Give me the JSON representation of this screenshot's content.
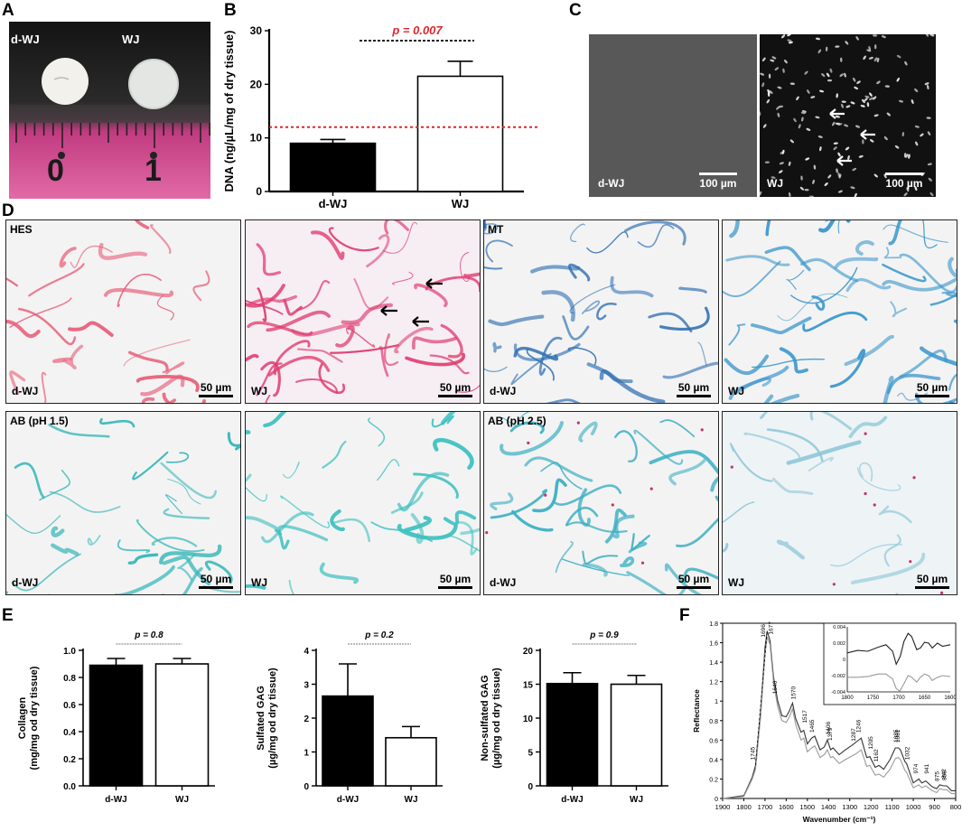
{
  "panels": {
    "A": {
      "letter": "A",
      "sample_labels": [
        "d-WJ",
        "WJ"
      ],
      "ruler_numbers": [
        "0",
        "1"
      ]
    },
    "B": {
      "letter": "B",
      "ylabel": "DNA (ng/µL/mg of dry tissue)",
      "p_text": "p = 0.007",
      "threshold_color": "#e0262b"
    },
    "C": {
      "letter": "C",
      "left_label": "d-WJ",
      "right_label": "WJ",
      "scalebar_text": "100 µm"
    },
    "D": {
      "letter": "D",
      "tiles": [
        {
          "stain_label": "HES",
          "sample_label": "d-WJ",
          "scalebar_text": "50 µm",
          "stain_color": "#e8607a"
        },
        {
          "stain_label": "",
          "sample_label": "WJ",
          "scalebar_text": "50 µm",
          "stain_color": "#e03c70"
        },
        {
          "stain_label": "MT",
          "sample_label": "d-WJ",
          "scalebar_text": "50 µm",
          "stain_color": "#2e6fb3"
        },
        {
          "stain_label": "",
          "sample_label": "WJ",
          "scalebar_text": "50 µm",
          "stain_color": "#3a96cc"
        },
        {
          "stain_label": "AB (pH 1.5)",
          "sample_label": "d-WJ",
          "scalebar_text": "50 µm",
          "stain_color": "#33b5b8"
        },
        {
          "stain_label": "",
          "sample_label": "WJ",
          "scalebar_text": "50 µm",
          "stain_color": "#3fc0c0"
        },
        {
          "stain_label": "AB (pH 2.5)",
          "sample_label": "d-WJ",
          "scalebar_text": "50 µm",
          "stain_color": "#3bafc2"
        },
        {
          "stain_label": "",
          "sample_label": "WJ",
          "scalebar_text": "50 µm",
          "stain_color": "#8fc8d8"
        }
      ]
    },
    "E": {
      "letter": "E"
    },
    "F": {
      "letter": "F",
      "peak_labels": [
        "1696",
        "1677",
        "1640",
        "1570",
        "1745",
        "1517",
        "1465",
        "1406",
        "1379",
        "1287",
        "1246",
        "1205",
        "1162",
        "1085",
        "1061",
        "1032",
        "974",
        "941",
        "875",
        "858",
        "842"
      ]
    }
  },
  "chart_data": [
    {
      "id": "B",
      "type": "bar",
      "categories": [
        "d-WJ",
        "WJ"
      ],
      "values": [
        9.0,
        21.5
      ],
      "errors": [
        0.7,
        2.8
      ],
      "bar_colors": [
        "#000000",
        "#ffffff"
      ],
      "ylabel": "DNA (ng/µL/mg of dry tissue)",
      "ylim": [
        0,
        30
      ],
      "yticks": [
        "0",
        "10",
        "20",
        "30"
      ],
      "threshold": 12,
      "annotation": "p = 0.007"
    },
    {
      "id": "E1",
      "type": "bar",
      "categories": [
        "d-WJ",
        "WJ"
      ],
      "values": [
        0.89,
        0.9
      ],
      "errors": [
        0.05,
        0.04
      ],
      "ylabel_lines": [
        "Collagen",
        "(mg/mg od dry tissue)"
      ],
      "ylim": [
        0,
        1.0
      ],
      "yticks": [
        "0.0",
        "0.2",
        "0.4",
        "0.6",
        "0.8",
        "1.0"
      ],
      "annotation": "p = 0.8"
    },
    {
      "id": "E2",
      "type": "bar",
      "categories": [
        "d-WJ",
        "WJ"
      ],
      "values": [
        2.65,
        1.42
      ],
      "errors": [
        0.95,
        0.33
      ],
      "ylabel_lines": [
        "Sulfated GAG",
        "(µg/mg od dry tissue)"
      ],
      "ylim": [
        0,
        4
      ],
      "yticks": [
        "0",
        "1",
        "2",
        "3",
        "4"
      ],
      "annotation": "p = 0.2"
    },
    {
      "id": "E3",
      "type": "bar",
      "categories": [
        "d-WJ",
        "WJ"
      ],
      "values": [
        15.1,
        15.0
      ],
      "errors": [
        1.6,
        1.3
      ],
      "ylabel_lines": [
        "Non-sulfated GAG",
        "(µg/mg od dry tissue)"
      ],
      "ylim": [
        0,
        20
      ],
      "yticks": [
        "0",
        "5",
        "10",
        "15",
        "20"
      ],
      "annotation": "p = 0.9"
    },
    {
      "id": "F",
      "type": "line",
      "xlabel": "Wavenumber (cm⁻¹)",
      "ylabel": "Reflectance",
      "xlim": [
        1900,
        800
      ],
      "ylim": [
        0,
        1.8
      ],
      "xticks": [
        1900,
        1800,
        1700,
        1600,
        1500,
        1400,
        1300,
        1200,
        1100,
        1000,
        900,
        800
      ],
      "yticks": [
        "0",
        "0.2",
        "0.4",
        "0.6",
        "0.8",
        "1",
        "1.2",
        "1.4",
        "1.6",
        "1.8"
      ],
      "series": [
        {
          "color": "#333333",
          "points": [
            [
              1900,
              0.0
            ],
            [
              1800,
              0.03
            ],
            [
              1760,
              0.22
            ],
            [
              1745,
              0.34
            ],
            [
              1720,
              0.9
            ],
            [
              1700,
              1.55
            ],
            [
              1690,
              1.72
            ],
            [
              1676,
              1.62
            ],
            [
              1660,
              1.25
            ],
            [
              1640,
              1.0
            ],
            [
              1620,
              0.85
            ],
            [
              1600,
              0.84
            ],
            [
              1585,
              0.9
            ],
            [
              1570,
              0.98
            ],
            [
              1555,
              0.82
            ],
            [
              1530,
              0.68
            ],
            [
              1517,
              0.7
            ],
            [
              1500,
              0.56
            ],
            [
              1480,
              0.62
            ],
            [
              1465,
              0.64
            ],
            [
              1440,
              0.5
            ],
            [
              1420,
              0.53
            ],
            [
              1406,
              0.6
            ],
            [
              1390,
              0.5
            ],
            [
              1379,
              0.52
            ],
            [
              1350,
              0.45
            ],
            [
              1320,
              0.5
            ],
            [
              1287,
              0.55
            ],
            [
              1270,
              0.58
            ],
            [
              1246,
              0.62
            ],
            [
              1220,
              0.42
            ],
            [
              1205,
              0.43
            ],
            [
              1180,
              0.32
            ],
            [
              1162,
              0.34
            ],
            [
              1140,
              0.3
            ],
            [
              1110,
              0.4
            ],
            [
              1085,
              0.52
            ],
            [
              1070,
              0.52
            ],
            [
              1061,
              0.5
            ],
            [
              1040,
              0.38
            ],
            [
              1032,
              0.36
            ],
            [
              1000,
              0.16
            ],
            [
              974,
              0.2
            ],
            [
              960,
              0.16
            ],
            [
              941,
              0.18
            ],
            [
              910,
              0.12
            ],
            [
              890,
              0.1
            ],
            [
              875,
              0.14
            ],
            [
              858,
              0.13
            ],
            [
              842,
              0.13
            ],
            [
              820,
              0.08
            ],
            [
              800,
              0.08
            ]
          ]
        },
        {
          "color": "#9a9a9a",
          "points": [
            [
              1900,
              0.0
            ],
            [
              1800,
              0.02
            ],
            [
              1760,
              0.2
            ],
            [
              1745,
              0.3
            ],
            [
              1720,
              0.85
            ],
            [
              1700,
              1.48
            ],
            [
              1690,
              1.66
            ],
            [
              1676,
              1.58
            ],
            [
              1660,
              1.2
            ],
            [
              1640,
              0.94
            ],
            [
              1620,
              0.8
            ],
            [
              1600,
              0.78
            ],
            [
              1585,
              0.84
            ],
            [
              1570,
              0.92
            ],
            [
              1555,
              0.76
            ],
            [
              1530,
              0.6
            ],
            [
              1517,
              0.62
            ],
            [
              1500,
              0.48
            ],
            [
              1480,
              0.52
            ],
            [
              1465,
              0.54
            ],
            [
              1440,
              0.42
            ],
            [
              1420,
              0.45
            ],
            [
              1406,
              0.5
            ],
            [
              1390,
              0.42
            ],
            [
              1379,
              0.43
            ],
            [
              1350,
              0.36
            ],
            [
              1320,
              0.4
            ],
            [
              1287,
              0.44
            ],
            [
              1270,
              0.46
            ],
            [
              1246,
              0.5
            ],
            [
              1220,
              0.33
            ],
            [
              1205,
              0.34
            ],
            [
              1180,
              0.24
            ],
            [
              1162,
              0.25
            ],
            [
              1140,
              0.22
            ],
            [
              1110,
              0.3
            ],
            [
              1085,
              0.41
            ],
            [
              1070,
              0.42
            ],
            [
              1061,
              0.4
            ],
            [
              1040,
              0.29
            ],
            [
              1032,
              0.27
            ],
            [
              1000,
              0.11
            ],
            [
              974,
              0.14
            ],
            [
              960,
              0.11
            ],
            [
              941,
              0.13
            ],
            [
              910,
              0.08
            ],
            [
              890,
              0.06
            ],
            [
              875,
              0.1
            ],
            [
              858,
              0.09
            ],
            [
              842,
              0.09
            ],
            [
              820,
              0.05
            ],
            [
              800,
              0.05
            ]
          ]
        }
      ]
    },
    {
      "id": "F-inset",
      "type": "line",
      "xlim": [
        1800,
        1600
      ],
      "ylim": [
        -0.004,
        0.004
      ],
      "xticks": [
        1800,
        1750,
        1700,
        1650,
        1600
      ],
      "yticks": [
        "-0.004",
        "-0.002",
        "0",
        "0.002",
        "0.004"
      ],
      "series": [
        {
          "color": "#222222",
          "points": [
            [
              1800,
              0.0008
            ],
            [
              1780,
              0.0011
            ],
            [
              1760,
              0.001
            ],
            [
              1740,
              0.0015
            ],
            [
              1725,
              0.0018
            ],
            [
              1712,
              0.001
            ],
            [
              1705,
              -0.0006
            ],
            [
              1697,
              0.0004
            ],
            [
              1690,
              0.0022
            ],
            [
              1682,
              0.0032
            ],
            [
              1675,
              0.0028
            ],
            [
              1665,
              0.0012
            ],
            [
              1658,
              0.0014
            ],
            [
              1650,
              0.0021
            ],
            [
              1642,
              0.002
            ],
            [
              1635,
              0.0014
            ],
            [
              1625,
              0.002
            ],
            [
              1615,
              0.0016
            ],
            [
              1600,
              0.0018
            ]
          ]
        },
        {
          "color": "#9a9a9a",
          "points": [
            [
              1800,
              -0.0022
            ],
            [
              1780,
              -0.0022
            ],
            [
              1760,
              -0.0021
            ],
            [
              1740,
              -0.0018
            ],
            [
              1725,
              -0.0018
            ],
            [
              1712,
              -0.0024
            ],
            [
              1705,
              -0.0036
            ],
            [
              1698,
              -0.0039
            ],
            [
              1690,
              -0.003
            ],
            [
              1682,
              -0.002
            ],
            [
              1675,
              -0.0022
            ],
            [
              1665,
              -0.0028
            ],
            [
              1658,
              -0.0022
            ],
            [
              1650,
              -0.0018
            ],
            [
              1642,
              -0.002
            ],
            [
              1635,
              -0.0026
            ],
            [
              1625,
              -0.0022
            ],
            [
              1615,
              -0.002
            ],
            [
              1600,
              -0.0021
            ]
          ]
        }
      ]
    }
  ]
}
